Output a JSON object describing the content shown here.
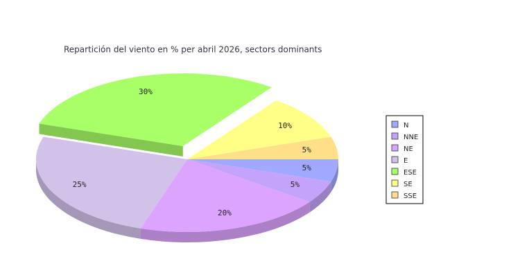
{
  "chart_data": {
    "type": "pie",
    "title": "Repartición del viento en % per abril 2026, sectors dominants",
    "categories": [
      "N",
      "NNE",
      "NE",
      "E",
      "ESE",
      "SE",
      "SSE"
    ],
    "values": [
      5,
      5,
      20,
      25,
      30,
      10,
      5
    ],
    "value_labels": [
      "5%",
      "5%",
      "20%",
      "25%",
      "30%",
      "10%",
      "5%"
    ],
    "colors": [
      "#a0a8ff",
      "#c4a4fa",
      "#dca4ff",
      "#d2c2ea",
      "#a8ff68",
      "#ffff88",
      "#ffe088"
    ],
    "exploded": [
      "ESE"
    ],
    "legend": "right"
  }
}
